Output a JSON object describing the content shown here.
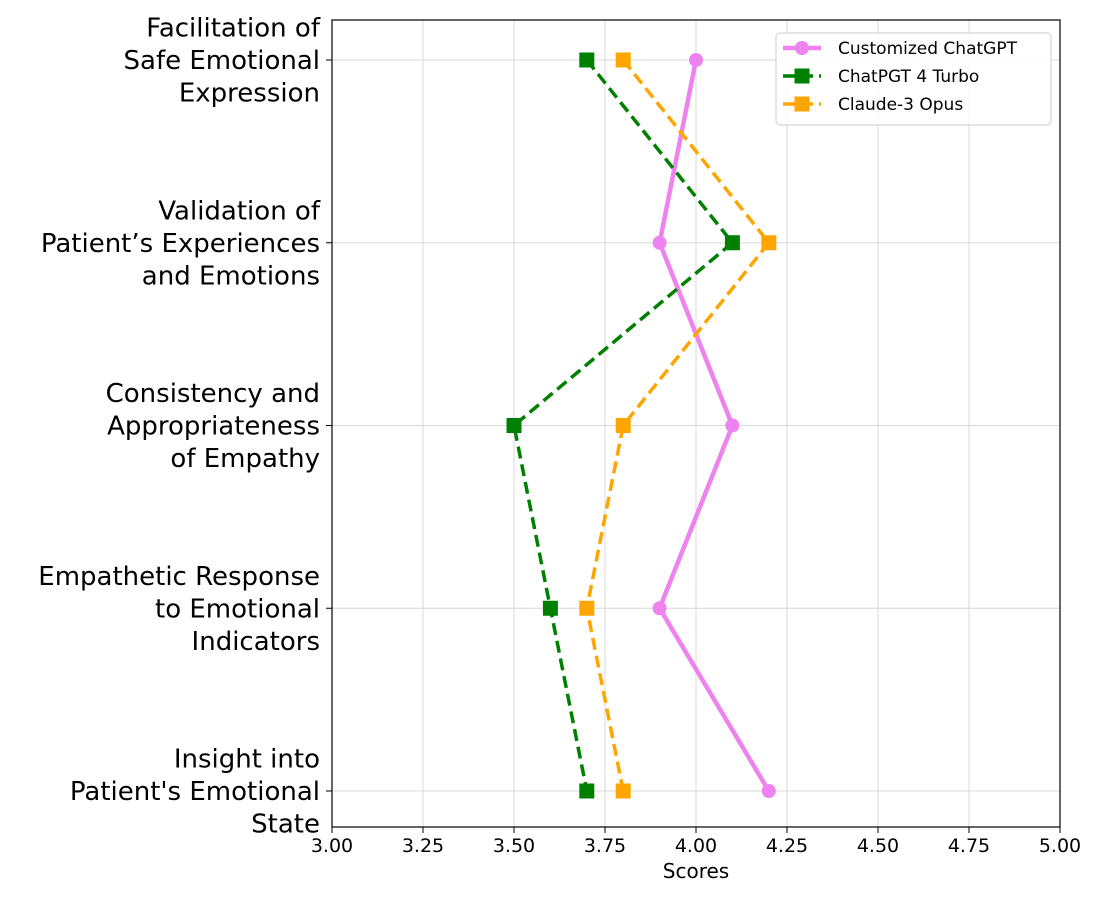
{
  "chart_data": {
    "type": "line",
    "orientation": "horizontal",
    "title": "",
    "xlabel": "Scores",
    "ylabel": "",
    "xlim": [
      3.0,
      5.0
    ],
    "xticks": [
      3.0,
      3.25,
      3.5,
      3.75,
      4.0,
      4.25,
      4.5,
      4.75,
      5.0
    ],
    "xtick_labels": [
      "3.00",
      "3.25",
      "3.50",
      "3.75",
      "4.00",
      "4.25",
      "4.50",
      "4.75",
      "5.00"
    ],
    "grid": true,
    "legend_position": "top-right",
    "categories": [
      [
        "Facilitation of",
        "Safe Emotional",
        "Expression"
      ],
      [
        "Validation of",
        "Patient’s Experiences",
        "and Emotions"
      ],
      [
        "Consistency and",
        "Appropriateness",
        "of Empathy"
      ],
      [
        "Empathetic Response",
        "to Emotional",
        "Indicators"
      ],
      [
        "Insight into",
        "Patient's Emotional",
        "State"
      ]
    ],
    "series": [
      {
        "name": "Customized ChatGPT",
        "color": "#ee82ee",
        "marker": "circle",
        "line_style": "solid",
        "values": [
          4.0,
          3.9,
          4.1,
          3.9,
          4.2
        ]
      },
      {
        "name": "ChatPGT 4 Turbo",
        "color": "#008000",
        "marker": "square",
        "line_style": "dashed",
        "values": [
          3.7,
          4.1,
          3.5,
          3.6,
          3.7
        ]
      },
      {
        "name": "Claude-3 Opus",
        "color": "#ffa500",
        "marker": "square",
        "line_style": "dashed",
        "values": [
          3.8,
          4.2,
          3.8,
          3.7,
          3.8
        ]
      }
    ]
  }
}
